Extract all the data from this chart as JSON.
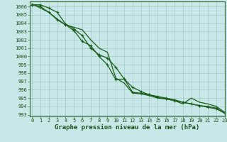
{
  "xlabel": "Graphe pression niveau de la mer (hPa)",
  "background_color": "#c8e8e8",
  "grid_color": "#a0c8c8",
  "line_color": "#1a5c1a",
  "x": [
    0,
    1,
    2,
    3,
    4,
    5,
    6,
    7,
    8,
    9,
    10,
    11,
    12,
    13,
    14,
    15,
    16,
    17,
    18,
    19,
    20,
    21,
    22,
    23
  ],
  "line1": [
    1006.2,
    1006.2,
    1005.8,
    1005.3,
    1003.9,
    1003.3,
    1002.5,
    1001.0,
    1000.2,
    999.8,
    998.7,
    997.3,
    996.3,
    995.8,
    995.4,
    995.1,
    994.9,
    994.7,
    994.5,
    994.3,
    994.1,
    993.9,
    993.7,
    993.2
  ],
  "line2": [
    1006.2,
    1006.0,
    1005.3,
    1004.4,
    1003.8,
    1003.1,
    1001.8,
    1001.3,
    1000.0,
    999.0,
    997.2,
    997.3,
    995.7,
    995.6,
    995.4,
    995.2,
    995.0,
    994.8,
    994.5,
    994.3,
    994.1,
    994.0,
    993.8,
    993.2
  ],
  "line3": [
    1006.3,
    1005.8,
    1005.3,
    1004.5,
    1003.8,
    1003.5,
    1003.2,
    1002.0,
    1001.0,
    1000.5,
    997.4,
    996.8,
    995.6,
    995.5,
    995.3,
    995.0,
    994.9,
    994.7,
    994.3,
    995.0,
    994.5,
    994.3,
    994.0,
    993.3
  ],
  "ylim": [
    992.8,
    1006.6
  ],
  "xlim": [
    -0.3,
    23
  ],
  "yticks": [
    993,
    994,
    995,
    996,
    997,
    998,
    999,
    1000,
    1001,
    1002,
    1003,
    1004,
    1005,
    1006
  ],
  "xticks": [
    0,
    1,
    2,
    3,
    4,
    5,
    6,
    7,
    8,
    9,
    10,
    11,
    12,
    13,
    14,
    15,
    16,
    17,
    18,
    19,
    20,
    21,
    22,
    23
  ],
  "tick_fontsize": 5.0,
  "xlabel_fontsize": 6.5
}
